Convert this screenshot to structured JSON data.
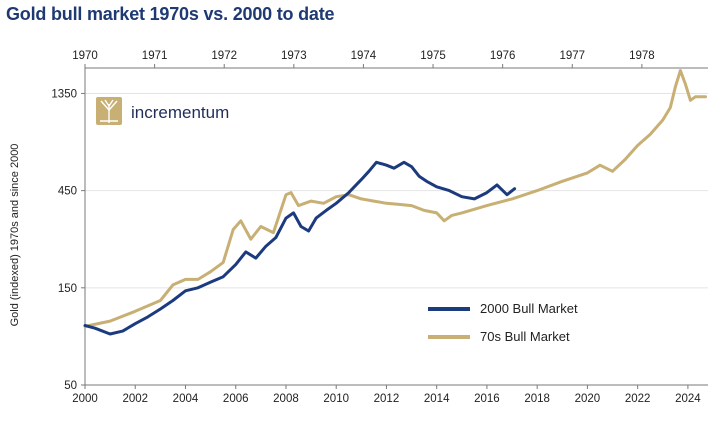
{
  "chart_data": {
    "type": "line",
    "title": "Gold bull market 1970s vs. 2000 to date",
    "ylabel": "Gold (indexed) 1970s and since 2000",
    "yscale": "log",
    "ylim": [
      50,
      1800
    ],
    "yticks": [
      50,
      150,
      450,
      1350
    ],
    "x_bottom": {
      "range": [
        2000,
        2024.8
      ],
      "ticks": [
        2000,
        2002,
        2004,
        2006,
        2008,
        2010,
        2012,
        2014,
        2016,
        2018,
        2020,
        2022,
        2024
      ]
    },
    "x_top": {
      "range": [
        1970,
        1978.95
      ],
      "ticks": [
        1970,
        1971,
        1972,
        1973,
        1974,
        1975,
        1976,
        1977,
        1978
      ]
    },
    "brand": "incrementum",
    "colors": {
      "navy": "#1c3b7e",
      "gold": "#c8af74",
      "title": "#1f3a73"
    },
    "series": [
      {
        "name": "2000 Bull Market",
        "color": "#1c3b7e",
        "x": [
          2000,
          2000.4,
          2001,
          2001.5,
          2002,
          2002.5,
          2003,
          2003.5,
          2004,
          2004.5,
          2005,
          2005.5,
          2006,
          2006.4,
          2006.8,
          2007.2,
          2007.6,
          2008,
          2008.3,
          2008.6,
          2008.9,
          2009.2,
          2009.6,
          2010,
          2010.5,
          2011,
          2011.3,
          2011.6,
          2012,
          2012.3,
          2012.7,
          2013,
          2013.3,
          2013.6,
          2014,
          2014.5,
          2015,
          2015.5,
          2016,
          2016.4,
          2016.8,
          2017.1
        ],
        "values": [
          98,
          95,
          89,
          92,
          100,
          108,
          118,
          130,
          145,
          150,
          160,
          170,
          195,
          225,
          210,
          240,
          265,
          330,
          350,
          300,
          285,
          330,
          360,
          390,
          440,
          510,
          560,
          620,
          600,
          580,
          620,
          590,
          530,
          500,
          470,
          450,
          420,
          410,
          440,
          480,
          430,
          460
        ]
      },
      {
        "name": "70s Bull Market",
        "color": "#c8af74",
        "x": [
          2000,
          2001,
          2002,
          2003,
          2003.5,
          2004,
          2004.5,
          2005,
          2005.5,
          2005.9,
          2006.2,
          2006.6,
          2007,
          2007.5,
          2008,
          2008.2,
          2008.5,
          2009,
          2009.5,
          2010,
          2010.5,
          2011,
          2011.5,
          2012,
          2012.5,
          2013,
          2013.5,
          2014,
          2014.3,
          2014.6,
          2015,
          2016,
          2017,
          2018,
          2019,
          2020,
          2020.5,
          2021,
          2021.5,
          2022,
          2022.5,
          2023,
          2023.3,
          2023.5,
          2023.7,
          2023.9,
          2024.1,
          2024.3,
          2024.7
        ],
        "values": [
          97,
          103,
          115,
          130,
          155,
          165,
          165,
          180,
          200,
          290,
          320,
          260,
          300,
          280,
          430,
          440,
          380,
          400,
          390,
          420,
          430,
          410,
          400,
          390,
          385,
          380,
          360,
          350,
          320,
          340,
          350,
          380,
          410,
          450,
          500,
          550,
          600,
          560,
          640,
          750,
          850,
          1000,
          1150,
          1450,
          1750,
          1500,
          1250,
          1300,
          1300
        ]
      }
    ]
  }
}
